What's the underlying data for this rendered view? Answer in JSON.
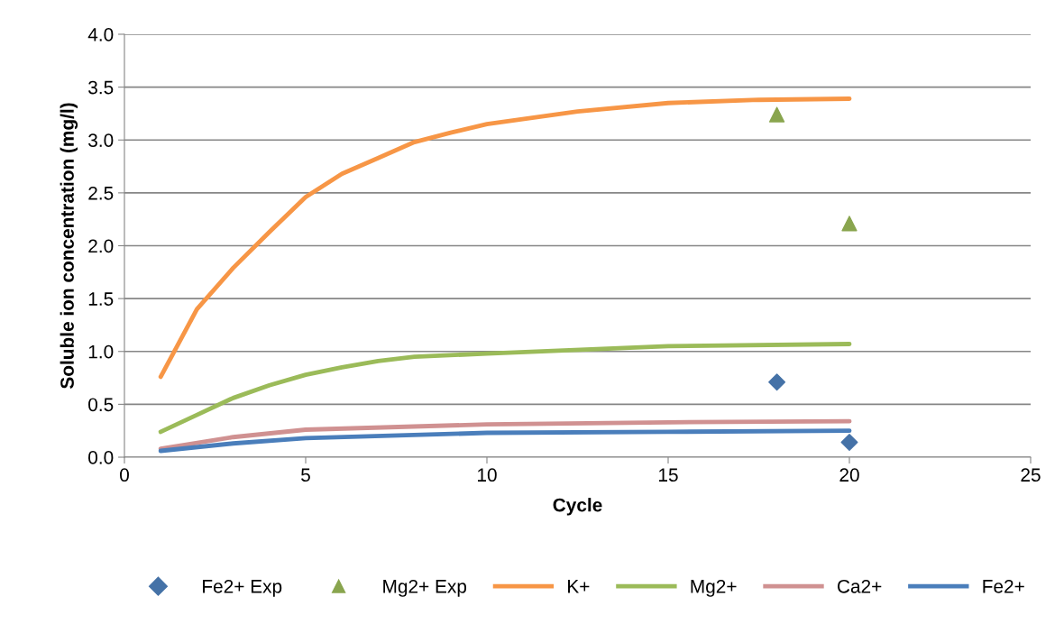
{
  "chart_data": {
    "type": "line",
    "xlabel": "Cycle",
    "ylabel": "Soluble ion concentration (mg/l)",
    "xlim": [
      0,
      25
    ],
    "xticks": [
      0,
      5,
      10,
      15,
      20,
      25
    ],
    "ylim": [
      0,
      4
    ],
    "yticks": [
      {
        "value": 0,
        "label": "0.0"
      },
      {
        "value": 0.5,
        "label": "0.5"
      },
      {
        "value": 1,
        "label": "1.0"
      },
      {
        "value": 1.5,
        "label": "1.5"
      },
      {
        "value": 2,
        "label": "2.0"
      },
      {
        "value": 2.5,
        "label": "2.5"
      },
      {
        "value": 3,
        "label": "3.0"
      },
      {
        "value": 3.5,
        "label": "3.5"
      },
      {
        "value": 4,
        "label": "4.0"
      }
    ],
    "grid": "y",
    "legend": "bottom",
    "series": [
      {
        "name": "Fe2+ Exp",
        "type": "scatter",
        "marker": "diamond",
        "color": "#4572a7",
        "x": [
          18,
          20
        ],
        "values": [
          0.71,
          0.14
        ]
      },
      {
        "name": "Mg2+ Exp",
        "type": "scatter",
        "marker": "triangle",
        "color": "#89a54e",
        "x": [
          18,
          20
        ],
        "values": [
          3.24,
          2.21
        ]
      },
      {
        "name": "K+",
        "color": "#f79646",
        "x": [
          1,
          2,
          3,
          4,
          5,
          6,
          7,
          8,
          9,
          10,
          12.5,
          15,
          17.5,
          20
        ],
        "values": [
          0.76,
          1.4,
          1.79,
          2.13,
          2.46,
          2.68,
          2.83,
          2.98,
          3.07,
          3.15,
          3.27,
          3.35,
          3.38,
          3.39
        ]
      },
      {
        "name": "Mg2+",
        "color": "#9bbb59",
        "x": [
          1,
          2,
          3,
          4,
          5,
          6,
          7,
          8,
          10,
          15,
          20
        ],
        "values": [
          0.24,
          0.4,
          0.56,
          0.68,
          0.78,
          0.85,
          0.91,
          0.95,
          0.98,
          1.05,
          1.07
        ]
      },
      {
        "name": "Ca2+",
        "color": "#d09191",
        "x": [
          1,
          3,
          5,
          10,
          15,
          20
        ],
        "values": [
          0.08,
          0.19,
          0.26,
          0.31,
          0.33,
          0.34
        ]
      },
      {
        "name": "Fe2+",
        "color": "#4a7ebb",
        "x": [
          1,
          3,
          5,
          10,
          15,
          20
        ],
        "values": [
          0.06,
          0.13,
          0.18,
          0.23,
          0.24,
          0.25
        ]
      }
    ]
  }
}
